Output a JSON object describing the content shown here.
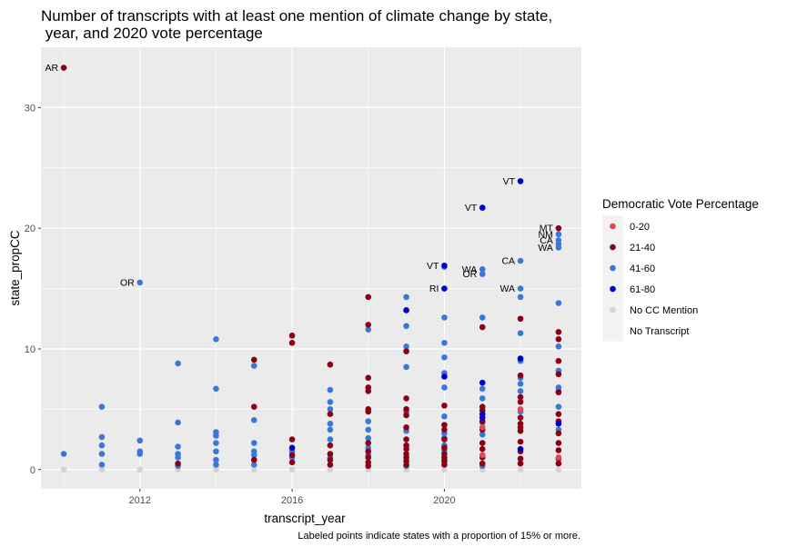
{
  "chart_data": {
    "type": "scatter",
    "title": [
      "Number of transcripts with at least one mention of climate change by state,",
      " year, and 2020 vote percentage"
    ],
    "xlabel": "transcript_year",
    "ylabel": "state_propCC",
    "caption": "Labeled points indicate states with a proportion of 15% or more.",
    "xlim": [
      2009.4,
      2023.6
    ],
    "ylim": [
      -1.6,
      35
    ],
    "xticks": [
      2012,
      2016,
      2020
    ],
    "yticks": [
      0,
      10,
      20,
      30
    ],
    "grid": true,
    "legend": {
      "title": "Democratic Vote Percentage",
      "position": "right",
      "entries": [
        {
          "label": "0-20",
          "color": "#e04a55"
        },
        {
          "label": "21-40",
          "color": "#8b0014"
        },
        {
          "label": "41-60",
          "color": "#3a78d8"
        },
        {
          "label": "61-80",
          "color": "#0000cd"
        },
        {
          "label": "No CC Mention",
          "color": "#d3d3d3"
        },
        {
          "label": "No Transcript",
          "color": "#f2f2f2"
        }
      ]
    },
    "series": [
      {
        "category": "0-20",
        "color": "#e04a55",
        "points": [
          [
            2021,
            3.5
          ],
          [
            2021,
            1.2
          ],
          [
            2022,
            5.0
          ],
          [
            2023,
            1.0
          ]
        ]
      },
      {
        "category": "21-40",
        "color": "#8b0014",
        "points": [
          [
            2010,
            33.3
          ],
          [
            2013,
            0.5
          ],
          [
            2015,
            9.1
          ],
          [
            2015,
            5.2
          ],
          [
            2015,
            0.8
          ],
          [
            2016,
            11.1
          ],
          [
            2016,
            10.5
          ],
          [
            2016,
            2.5
          ],
          [
            2016,
            1.2
          ],
          [
            2016,
            0.6
          ],
          [
            2017,
            8.7
          ],
          [
            2017,
            4.6
          ],
          [
            2017,
            2.0
          ],
          [
            2017,
            1.3
          ],
          [
            2017,
            0.8
          ],
          [
            2017,
            0.4
          ],
          [
            2018,
            14.3
          ],
          [
            2018,
            12.0
          ],
          [
            2018,
            7.6
          ],
          [
            2018,
            6.8
          ],
          [
            2018,
            6.5
          ],
          [
            2018,
            5.0
          ],
          [
            2018,
            4.8
          ],
          [
            2018,
            2.2
          ],
          [
            2018,
            1.5
          ],
          [
            2018,
            1.0
          ],
          [
            2018,
            0.6
          ],
          [
            2018,
            0.3
          ],
          [
            2019,
            9.8
          ],
          [
            2019,
            5.9
          ],
          [
            2019,
            5.0
          ],
          [
            2019,
            4.5
          ],
          [
            2019,
            3.5
          ],
          [
            2019,
            2.5
          ],
          [
            2019,
            2.0
          ],
          [
            2019,
            1.7
          ],
          [
            2019,
            1.3
          ],
          [
            2019,
            1.0
          ],
          [
            2019,
            0.7
          ],
          [
            2019,
            0.4
          ],
          [
            2020,
            5.3
          ],
          [
            2020,
            3.7
          ],
          [
            2020,
            3.3
          ],
          [
            2020,
            2.5
          ],
          [
            2020,
            1.8
          ],
          [
            2020,
            1.3
          ],
          [
            2020,
            1.0
          ],
          [
            2020,
            0.7
          ],
          [
            2020,
            0.4
          ],
          [
            2021,
            11.8
          ],
          [
            2021,
            5.2
          ],
          [
            2021,
            4.9
          ],
          [
            2021,
            4.0
          ],
          [
            2021,
            3.3
          ],
          [
            2021,
            2.2
          ],
          [
            2021,
            1.7
          ],
          [
            2021,
            1.0
          ],
          [
            2021,
            0.5
          ],
          [
            2022,
            12.5
          ],
          [
            2022,
            7.8
          ],
          [
            2022,
            6.0
          ],
          [
            2022,
            5.6
          ],
          [
            2022,
            4.3
          ],
          [
            2022,
            3.8
          ],
          [
            2022,
            3.5
          ],
          [
            2022,
            3.2
          ],
          [
            2022,
            2.3
          ],
          [
            2022,
            1.5
          ],
          [
            2022,
            0.9
          ],
          [
            2022,
            0.5
          ],
          [
            2023,
            20.0
          ],
          [
            2023,
            11.4
          ],
          [
            2023,
            10.8
          ],
          [
            2023,
            9.0
          ],
          [
            2023,
            7.9
          ],
          [
            2023,
            6.4
          ],
          [
            2023,
            4.6
          ],
          [
            2023,
            4.0
          ],
          [
            2023,
            3.0
          ],
          [
            2023,
            2.2
          ],
          [
            2023,
            1.6
          ],
          [
            2023,
            0.9
          ],
          [
            2023,
            0.5
          ]
        ]
      },
      {
        "category": "41-60",
        "color": "#3a78d8",
        "points": [
          [
            2010,
            1.3
          ],
          [
            2011,
            5.2
          ],
          [
            2011,
            2.7
          ],
          [
            2011,
            2.0
          ],
          [
            2011,
            1.3
          ],
          [
            2011,
            0.4
          ],
          [
            2012,
            15.5
          ],
          [
            2012,
            2.4
          ],
          [
            2012,
            1.5
          ],
          [
            2012,
            1.3
          ],
          [
            2013,
            8.8
          ],
          [
            2013,
            3.9
          ],
          [
            2013,
            1.9
          ],
          [
            2013,
            1.3
          ],
          [
            2013,
            1.0
          ],
          [
            2013,
            0.3
          ],
          [
            2014,
            10.8
          ],
          [
            2014,
            6.7
          ],
          [
            2014,
            3.1
          ],
          [
            2014,
            2.8
          ],
          [
            2014,
            2.2
          ],
          [
            2014,
            1.5
          ],
          [
            2014,
            0.8
          ],
          [
            2014,
            0.4
          ],
          [
            2015,
            8.6
          ],
          [
            2015,
            4.1
          ],
          [
            2015,
            2.2
          ],
          [
            2015,
            1.5
          ],
          [
            2015,
            1.2
          ],
          [
            2015,
            0.4
          ],
          [
            2016,
            1.5
          ],
          [
            2016,
            1.0
          ],
          [
            2017,
            6.6
          ],
          [
            2017,
            5.6
          ],
          [
            2017,
            5.0
          ],
          [
            2017,
            3.8
          ],
          [
            2017,
            3.3
          ],
          [
            2017,
            2.5
          ],
          [
            2017,
            1.0
          ],
          [
            2018,
            11.6
          ],
          [
            2018,
            4.0
          ],
          [
            2018,
            3.3
          ],
          [
            2018,
            2.6
          ],
          [
            2018,
            1.8
          ],
          [
            2018,
            1.2
          ],
          [
            2019,
            14.3
          ],
          [
            2019,
            13.2
          ],
          [
            2019,
            11.9
          ],
          [
            2019,
            10.2
          ],
          [
            2019,
            8.5
          ],
          [
            2019,
            4.8
          ],
          [
            2019,
            3.2
          ],
          [
            2019,
            0.3
          ],
          [
            2020,
            16.8
          ],
          [
            2020,
            12.6
          ],
          [
            2020,
            10.5
          ],
          [
            2020,
            9.3
          ],
          [
            2020,
            8.0
          ],
          [
            2020,
            6.8
          ],
          [
            2020,
            4.4
          ],
          [
            2020,
            3.0
          ],
          [
            2020,
            2.6
          ],
          [
            2020,
            2.0
          ],
          [
            2020,
            1.6
          ],
          [
            2020,
            0.8
          ],
          [
            2021,
            16.6
          ],
          [
            2021,
            16.2
          ],
          [
            2021,
            12.6
          ],
          [
            2021,
            6.7
          ],
          [
            2021,
            5.9
          ],
          [
            2021,
            3.9
          ],
          [
            2021,
            2.9
          ],
          [
            2021,
            0.3
          ],
          [
            2022,
            17.3
          ],
          [
            2022,
            15.0
          ],
          [
            2022,
            14.3
          ],
          [
            2022,
            11.3
          ],
          [
            2022,
            9.0
          ],
          [
            2022,
            7.6
          ],
          [
            2022,
            7.1
          ],
          [
            2022,
            6.5
          ],
          [
            2022,
            4.8
          ],
          [
            2023,
            19.5
          ],
          [
            2023,
            19.0
          ],
          [
            2023,
            18.7
          ],
          [
            2023,
            18.4
          ],
          [
            2023,
            13.8
          ],
          [
            2023,
            10.2
          ],
          [
            2023,
            8.2
          ],
          [
            2023,
            6.8
          ],
          [
            2023,
            6.5
          ],
          [
            2023,
            5.2
          ],
          [
            2023,
            3.3
          ]
        ]
      },
      {
        "category": "61-80",
        "color": "#0000cd",
        "points": [
          [
            2016,
            1.8
          ],
          [
            2019,
            13.2
          ],
          [
            2020,
            16.9
          ],
          [
            2020,
            15.0
          ],
          [
            2020,
            7.7
          ],
          [
            2021,
            21.7
          ],
          [
            2021,
            7.2
          ],
          [
            2021,
            4.6
          ],
          [
            2021,
            4.3
          ],
          [
            2022,
            23.9
          ],
          [
            2022,
            9.2
          ],
          [
            2022,
            1.7
          ],
          [
            2023,
            3.8
          ]
        ]
      },
      {
        "category": "No CC Mention",
        "color": "#d3d3d3",
        "points": [
          [
            2010,
            0
          ],
          [
            2011,
            0
          ],
          [
            2012,
            0
          ],
          [
            2013,
            0
          ],
          [
            2014,
            0
          ],
          [
            2015,
            0
          ],
          [
            2016,
            0
          ],
          [
            2017,
            0
          ],
          [
            2018,
            0
          ],
          [
            2019,
            0
          ],
          [
            2020,
            0
          ],
          [
            2021,
            0
          ],
          [
            2022,
            0
          ],
          [
            2023,
            0
          ]
        ]
      }
    ],
    "annotations": [
      {
        "label": "AR",
        "x": 2010,
        "y": 33.3
      },
      {
        "label": "OR",
        "x": 2012,
        "y": 15.5
      },
      {
        "label": "VT",
        "x": 2020,
        "y": 16.9
      },
      {
        "label": "RI",
        "x": 2020,
        "y": 15.0
      },
      {
        "label": "VT",
        "x": 2021,
        "y": 21.7
      },
      {
        "label": "WA",
        "x": 2021,
        "y": 16.6
      },
      {
        "label": "OR",
        "x": 2021,
        "y": 16.2
      },
      {
        "label": "VT",
        "x": 2022,
        "y": 23.9
      },
      {
        "label": "CA",
        "x": 2022,
        "y": 17.3
      },
      {
        "label": "WA",
        "x": 2022,
        "y": 15.0
      },
      {
        "label": "MT",
        "x": 2023,
        "y": 20.0
      },
      {
        "label": "NM",
        "x": 2023,
        "y": 19.5
      },
      {
        "label": "CA",
        "x": 2023,
        "y": 19.0
      },
      {
        "label": "WA",
        "x": 2023,
        "y": 18.4
      }
    ]
  }
}
